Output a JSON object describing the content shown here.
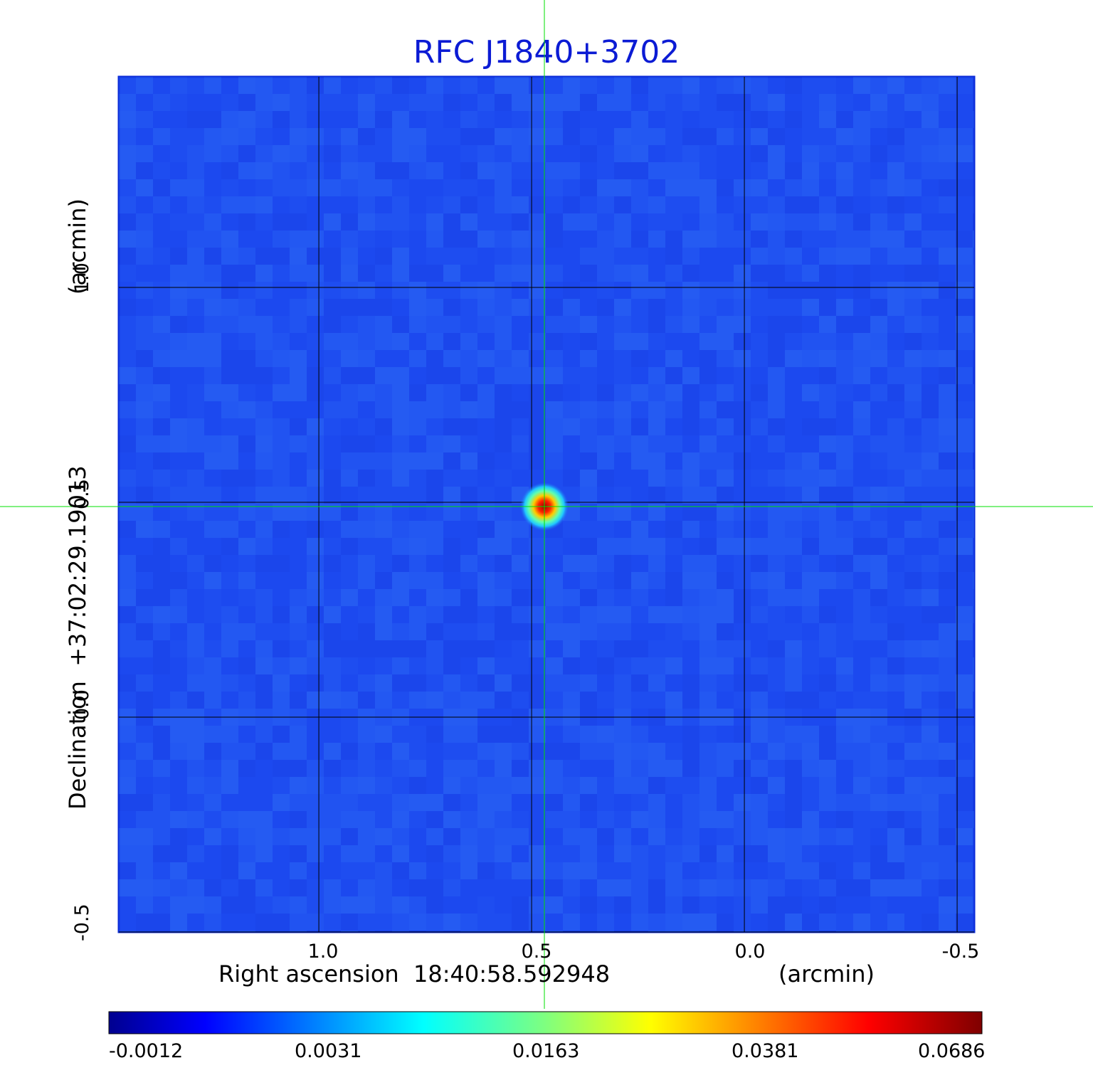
{
  "chart_data": {
    "type": "heatmap",
    "title": "RFC J1840+3702",
    "xlabel": "Right ascension  18:40:58.592948",
    "xlabel_unit": "(arcmin)",
    "ylabel": "Declination  +37:02:29.19013",
    "ylabel_unit": "(arcmin)",
    "x_ticks": [
      "1.0",
      "0.5",
      "0.0",
      "-0.5"
    ],
    "x_tick_values": [
      1.0,
      0.5,
      0.0,
      -0.5
    ],
    "y_ticks": [
      "1.0",
      "0.5",
      "0.0",
      "-0.5"
    ],
    "y_tick_values": [
      1.0,
      0.5,
      0.0,
      -0.5
    ],
    "xlim": [
      1.47,
      -0.54
    ],
    "ylim": [
      -0.5,
      1.49
    ],
    "colormap": "jet",
    "colorbar_ticks": [
      "-0.0012",
      "0.0031",
      "0.0163",
      "0.0381",
      "0.0686"
    ],
    "colorbar_range": [
      -0.0012,
      0.0686
    ],
    "source_peak": {
      "x": 0.47,
      "y": 0.49,
      "value": 0.0686
    },
    "crosshair": {
      "x": 0.47,
      "y": 0.49,
      "color": "#00e000"
    },
    "grid": true,
    "background_color": "#1f4ff0"
  }
}
